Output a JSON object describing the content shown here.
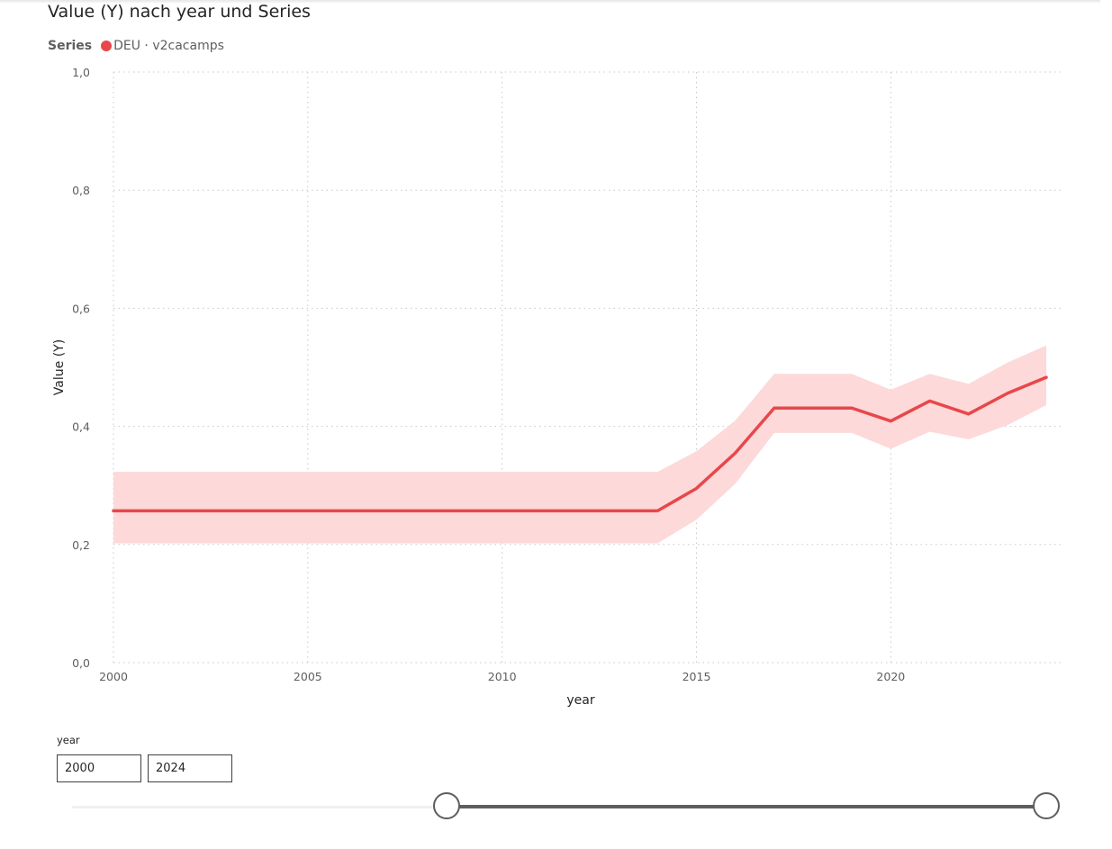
{
  "chart_data": {
    "type": "line",
    "title": "Value (Y) nach year und Series",
    "xlabel": "year",
    "ylabel": "Value (Y)",
    "xlim": [
      2000,
      2024
    ],
    "ylim": [
      0,
      1
    ],
    "x_ticks": [
      2000,
      2005,
      2010,
      2015,
      2020
    ],
    "x_tick_labels": [
      "2000",
      "2005",
      "2010",
      "2015",
      "2020"
    ],
    "y_ticks": [
      0,
      0.2,
      0.4,
      0.6,
      0.8,
      1
    ],
    "y_tick_labels": [
      "0,0",
      "0,2",
      "0,4",
      "0,6",
      "0,8",
      "1,0"
    ],
    "grid": true,
    "legend": {
      "title": "Series",
      "position": "top-left",
      "entries": [
        {
          "name": "DEU · v2cacamps",
          "color": "#E8474B"
        }
      ]
    },
    "series": [
      {
        "name": "DEU · v2cacamps",
        "color": "#E8474B",
        "band_color": "#FDD9D9",
        "x": [
          2000,
          2001,
          2002,
          2003,
          2004,
          2005,
          2006,
          2007,
          2008,
          2009,
          2010,
          2011,
          2012,
          2013,
          2014,
          2015,
          2016,
          2017,
          2018,
          2019,
          2020,
          2021,
          2022,
          2023,
          2024
        ],
        "y": [
          0.257,
          0.257,
          0.257,
          0.257,
          0.257,
          0.257,
          0.257,
          0.257,
          0.257,
          0.257,
          0.257,
          0.257,
          0.257,
          0.257,
          0.257,
          0.295,
          0.355,
          0.431,
          0.431,
          0.431,
          0.409,
          0.443,
          0.421,
          0.456,
          0.483
        ],
        "lower": [
          0.202,
          0.202,
          0.202,
          0.202,
          0.202,
          0.202,
          0.202,
          0.202,
          0.202,
          0.202,
          0.202,
          0.202,
          0.202,
          0.202,
          0.202,
          0.242,
          0.303,
          0.389,
          0.389,
          0.389,
          0.362,
          0.391,
          0.378,
          0.402,
          0.436
        ],
        "upper": [
          0.323,
          0.323,
          0.323,
          0.323,
          0.323,
          0.323,
          0.323,
          0.323,
          0.323,
          0.323,
          0.323,
          0.323,
          0.323,
          0.323,
          0.323,
          0.358,
          0.41,
          0.489,
          0.489,
          0.489,
          0.462,
          0.489,
          0.472,
          0.508,
          0.537
        ]
      }
    ]
  },
  "slicer": {
    "title": "year",
    "start_value": "2000",
    "end_value": "2024",
    "range_min": 1985,
    "range_max": 2024,
    "selected_start": 2000,
    "selected_end": 2024
  }
}
